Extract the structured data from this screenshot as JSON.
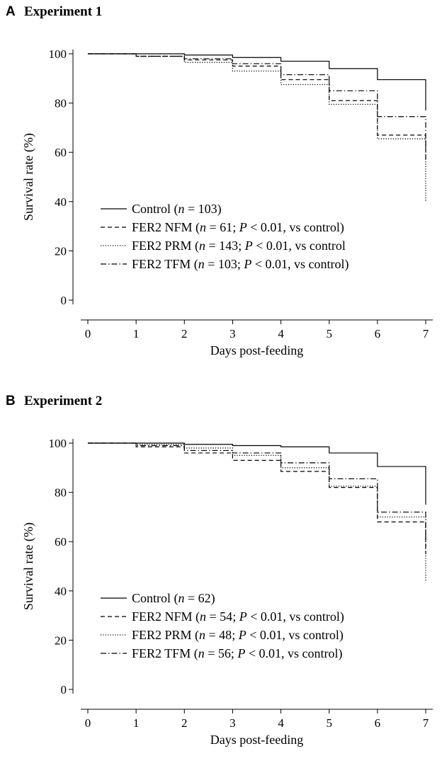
{
  "chart_data": [
    {
      "type": "line",
      "panel_label": "A",
      "title": "Experiment 1",
      "xlabel": "Days post-feeding",
      "ylabel": "Survival rate (%)",
      "xlim": [
        0,
        7
      ],
      "ylim": [
        0,
        100
      ],
      "x_ticks": [
        0,
        1,
        2,
        3,
        4,
        5,
        6,
        7
      ],
      "y_ticks": [
        0,
        20,
        40,
        60,
        80,
        100
      ],
      "grid": false,
      "legend_position": "bottom-left",
      "series": [
        {
          "name": "Control",
          "n": "103",
          "p_text": "",
          "style": "solid",
          "x": [
            0,
            1,
            2,
            3,
            4,
            5,
            6,
            7,
            7
          ],
          "values": [
            100,
            100,
            99.5,
            98.5,
            97,
            94,
            89.5,
            89.5,
            77
          ]
        },
        {
          "name": "FER2 NFM",
          "n": "61",
          "p_text": "0.01",
          "style": "dashed",
          "x": [
            0,
            1,
            2,
            3,
            4,
            5,
            6,
            7,
            7
          ],
          "values": [
            100,
            99,
            97.5,
            95,
            89.5,
            81,
            67,
            67,
            56
          ]
        },
        {
          "name": "FER2 PRM",
          "n": "143",
          "p_text": "0.01",
          "style": "dotted",
          "x": [
            0,
            1,
            2,
            3,
            4,
            5,
            6,
            7,
            7
          ],
          "values": [
            100,
            99,
            96.5,
            93,
            87.5,
            79.5,
            65.5,
            65.5,
            40
          ]
        },
        {
          "name": "FER2 TFM",
          "n": "103",
          "p_text": "0.01",
          "style": "dashdot",
          "x": [
            0,
            1,
            2,
            3,
            4,
            5,
            6,
            7,
            7
          ],
          "values": [
            100,
            99,
            98,
            96,
            91.5,
            85,
            74.5,
            74.5,
            62
          ]
        }
      ]
    },
    {
      "type": "line",
      "panel_label": "B",
      "title": "Experiment 2",
      "xlabel": "Days post-feeding",
      "ylabel": "Survival rate (%)",
      "xlim": [
        0,
        7
      ],
      "ylim": [
        0,
        100
      ],
      "x_ticks": [
        0,
        1,
        2,
        3,
        4,
        5,
        6,
        7
      ],
      "y_ticks": [
        0,
        20,
        40,
        60,
        80,
        100
      ],
      "grid": false,
      "legend_position": "bottom-left",
      "series": [
        {
          "name": "Control",
          "n": "62",
          "p_text": "",
          "style": "solid",
          "x": [
            0,
            1,
            2,
            3,
            4,
            5,
            6,
            7,
            7
          ],
          "values": [
            100,
            100,
            99.5,
            99,
            98.5,
            96,
            90.5,
            90.5,
            75
          ]
        },
        {
          "name": "FER2 NFM",
          "n": "54",
          "p_text": "0.01",
          "style": "dashed",
          "x": [
            0,
            1,
            2,
            3,
            4,
            5,
            6,
            7,
            7
          ],
          "values": [
            100,
            98.5,
            96,
            93,
            88.5,
            82,
            68,
            68,
            55
          ]
        },
        {
          "name": "FER2 PRM",
          "n": "48",
          "p_text": "0.01",
          "style": "dotted",
          "x": [
            0,
            1,
            2,
            3,
            4,
            5,
            6,
            7,
            7
          ],
          "values": [
            100,
            99.5,
            98,
            95,
            90,
            82.5,
            70,
            70,
            44
          ]
        },
        {
          "name": "FER2 TFM",
          "n": "56",
          "p_text": "0.01",
          "style": "dashdot",
          "x": [
            0,
            1,
            2,
            3,
            4,
            5,
            6,
            7,
            7
          ],
          "values": [
            100,
            99,
            97,
            96,
            92,
            85.5,
            72,
            72,
            58
          ]
        }
      ]
    }
  ],
  "legend_text": {
    "n_label": "n",
    "p_label": "P",
    "suffix": ", vs control"
  }
}
